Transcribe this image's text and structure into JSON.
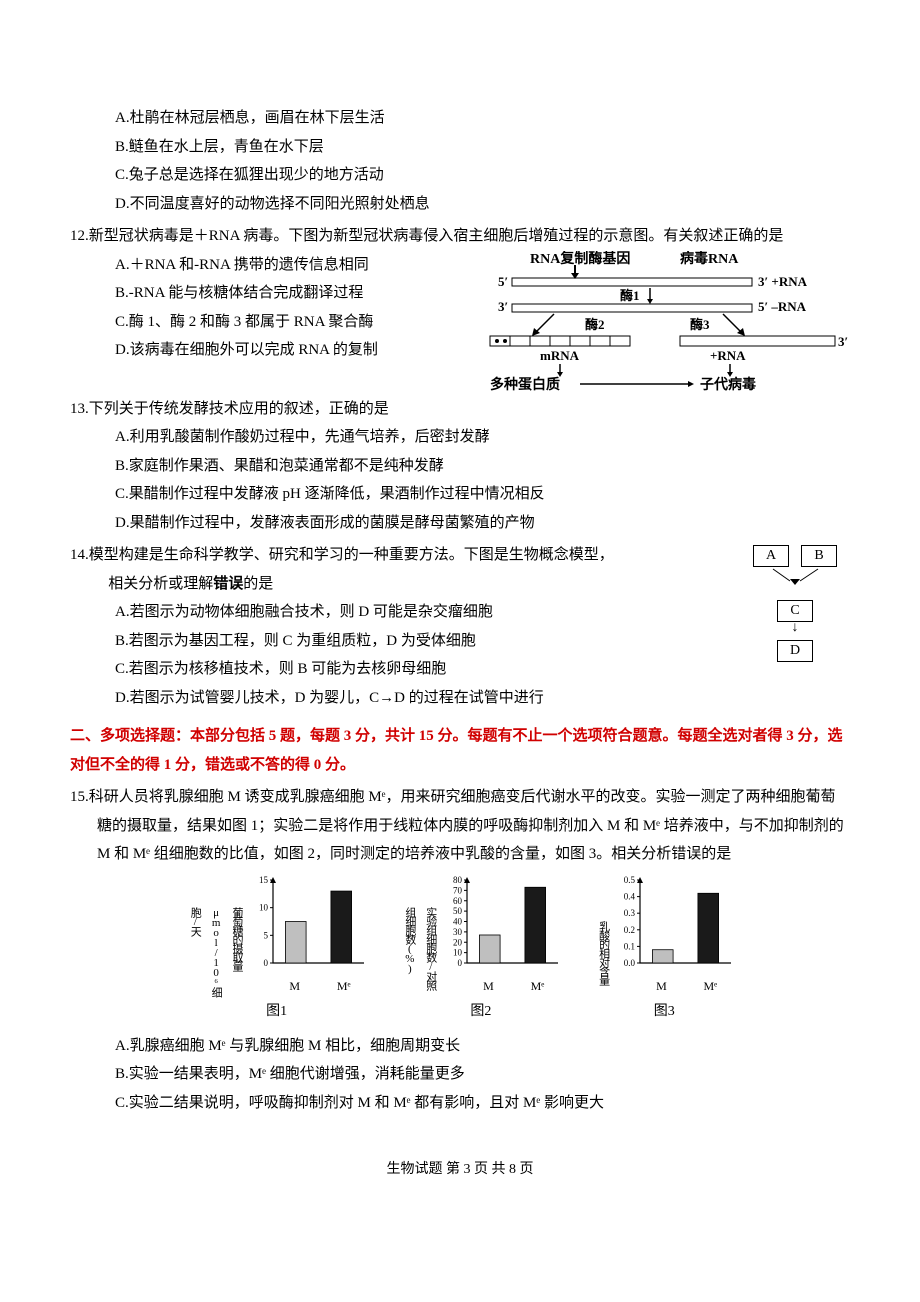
{
  "q11": {
    "options": {
      "A": "A.杜鹃在林冠层栖息，画眉在林下层生活",
      "B": "B.鲢鱼在水上层，青鱼在水下层",
      "C": "C.兔子总是选择在狐狸出现少的地方活动",
      "D": "D.不同温度喜好的动物选择不同阳光照射处栖息"
    }
  },
  "q12": {
    "stem": "12.新型冠状病毒是＋RNA 病毒。下图为新型冠状病毒侵入宿主细胞后增殖过程的示意图。有关叙述正确的是",
    "options": {
      "A": "A.＋RNA 和-RNA 携带的遗传信息相同",
      "B": "B.-RNA 能与核糖体结合完成翻译过程",
      "C": "C.酶 1、酶 2 和酶 3 都属于 RNA 聚合酶",
      "D": "D.该病毒在细胞外可以完成 RNA 的复制"
    },
    "diagram": {
      "labels": {
        "top1": "RNA复制酶基因",
        "top2": "病毒RNA",
        "e1": "酶1",
        "e2": "酶2",
        "e3": "酶3",
        "plus_rna1": "3′ +RNA",
        "minus_rna": "5′ –RNA",
        "five": "5′",
        "three": "3′",
        "mrna": "mRNA",
        "plus_rna2": "+RNA",
        "protein": "多种蛋白质",
        "child": "子代病毒"
      }
    }
  },
  "q13": {
    "stem": "13.下列关于传统发酵技术应用的叙述，正确的是",
    "options": {
      "A": "A.利用乳酸菌制作酸奶过程中，先通气培养，后密封发酵",
      "B": "B.家庭制作果酒、果醋和泡菜通常都不是纯种发酵",
      "C": "C.果醋制作过程中发酵液 pH 逐渐降低，果酒制作过程中情况相反",
      "D": "D.果醋制作过程中，发酵液表面形成的菌膜是酵母菌繁殖的产物"
    }
  },
  "q14": {
    "stem1": "14.模型构建是生命科学教学、研究和学习的一种重要方法。下图是生物概念模型，",
    "stem2": "相关分析或理解",
    "err": "错误",
    "stem3": "的是",
    "options": {
      "A": "A.若图示为动物体细胞融合技术，则 D 可能是杂交瘤细胞",
      "B": "B.若图示为基因工程，则 C 为重组质粒，D 为受体细胞",
      "C": "C.若图示为核移植技术，则 B 可能为去核卵母细胞",
      "D": "D.若图示为试管婴儿技术，D 为婴儿，C→D 的过程在试管中进行"
    },
    "model": {
      "A": "A",
      "B": "B",
      "C": "C",
      "D": "D"
    }
  },
  "section2": {
    "text1": "二、多项选择题：本部分包括 5 题，每题 3 分，共计 15 分。每题有不止一个选项符合题意。每题全选对者得 3 分，选对但不全的得 1 分，错选或不答的得 0 分。"
  },
  "q15": {
    "stem": "15.科研人员将乳腺细胞 M 诱变成乳腺癌细胞 Mᵉ，用来研究细胞癌变后代谢水平的改变。实验一测定了两种细胞葡萄糖的摄取量，结果如图 1；实验二是将作用于线粒体内膜的呼吸酶抑制剂加入 M 和 Mᵉ 培养液中，与不加抑制剂的 M 和 Mᵉ 组细胞数的比值，如图 2，同时测定的培养液中乳酸的含量，如图 3。相关分析错误的是",
    "options": {
      "A": "A.乳腺癌细胞 Mᵉ 与乳腺细胞 M 相比，细胞周期变长",
      "B": "B.实验一结果表明，Mᵉ 细胞代谢增强，消耗能量更多",
      "C": "C.实验二结果说明，呼吸酶抑制剂对 M 和 Mᵉ 都有影响，且对 Mᵉ 影响更大"
    },
    "charts": {
      "chart1": {
        "type": "bar",
        "ylabel": "葡萄糖的摄取量μmol/10⁶细胞/天",
        "xlabels": [
          "M",
          "Mᵉ"
        ],
        "values": [
          7.5,
          13
        ],
        "colors": [
          "#bfbfbf",
          "#1a1a1a"
        ],
        "ylim": [
          0,
          15
        ],
        "ytick_step": 5,
        "caption": "图1"
      },
      "chart2": {
        "type": "bar",
        "ylabel": "实验组细胞数/对照组细胞数(%)",
        "xlabels": [
          "M",
          "Mᵉ"
        ],
        "values": [
          27,
          73
        ],
        "colors": [
          "#bfbfbf",
          "#1a1a1a"
        ],
        "ylim": [
          0,
          80
        ],
        "ytick_step": 10,
        "caption": "图2"
      },
      "chart3": {
        "type": "bar",
        "ylabel": "乳酸的相对含量",
        "xlabels": [
          "M",
          "Mᵉ"
        ],
        "values": [
          0.08,
          0.42
        ],
        "colors": [
          "#bfbfbf",
          "#1a1a1a"
        ],
        "ylim": [
          0,
          0.5
        ],
        "ytick_step": 0.1,
        "caption": "图3"
      }
    }
  },
  "footer": "生物试题  第 3 页 共 8 页"
}
